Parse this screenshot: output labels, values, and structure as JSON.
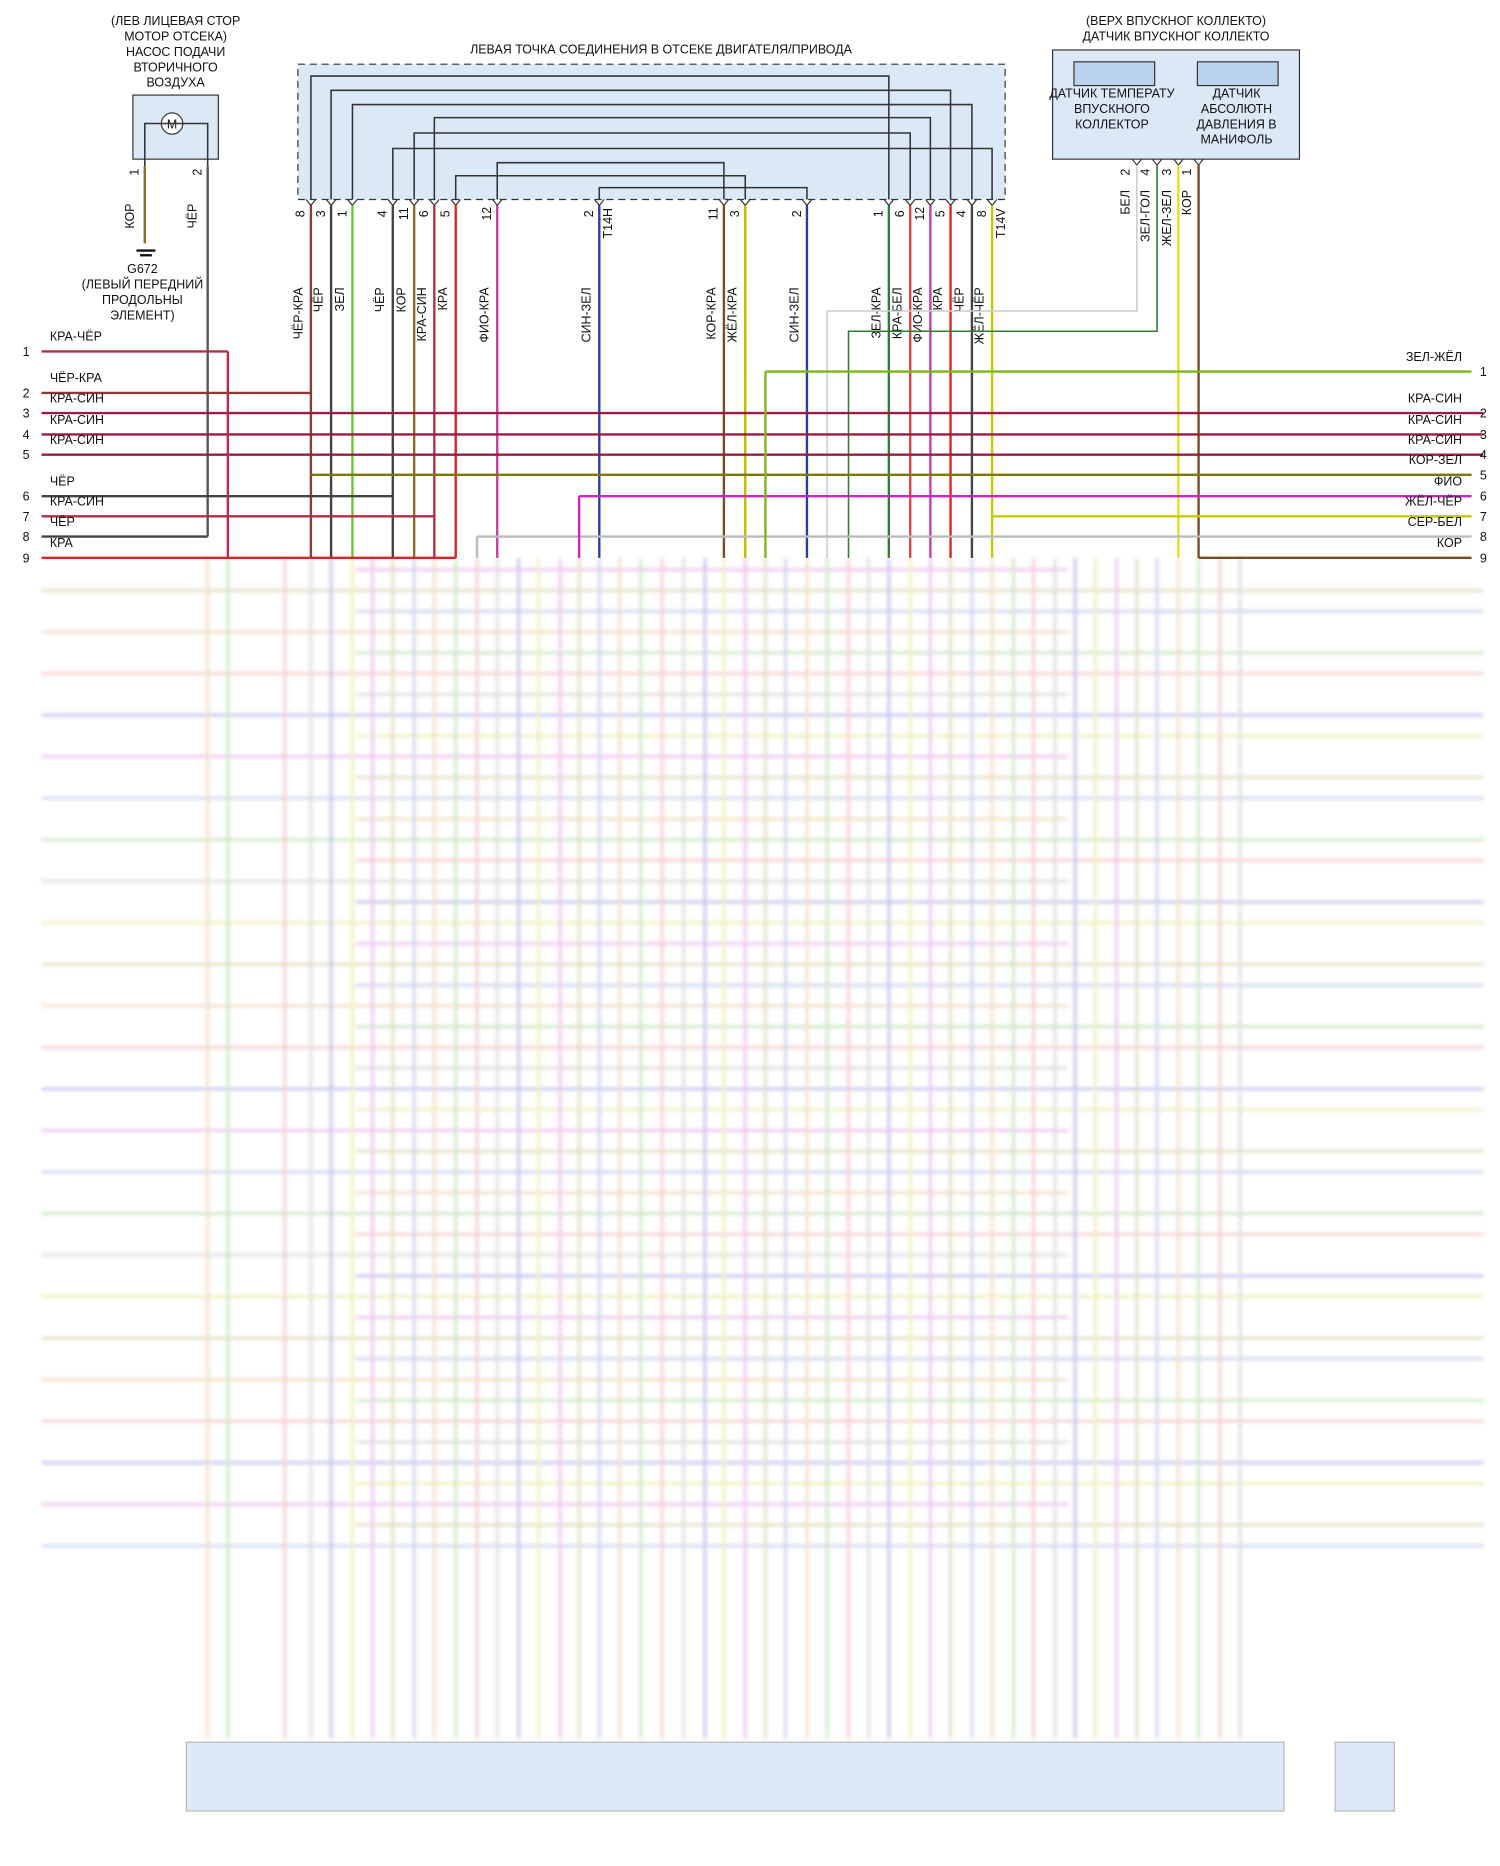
{
  "components": {
    "motor": {
      "lines": [
        "(ЛЕВ ЛИЦЕВАЯ СТОР",
        "МОТОР ОТСЕКА)",
        "НАСОС ПОДАЧИ",
        "ВТОРИЧНОГО",
        "ВОЗДУХА"
      ],
      "symbol": "M",
      "pins": [
        {
          "pin": "1",
          "wire": "КОР"
        },
        {
          "pin": "2",
          "wire": "ЧЁР"
        }
      ]
    },
    "ground": {
      "lines": [
        "G672",
        "(ЛЕВЫЙ ПЕРЕДНИЙ",
        "ПРОДОЛЬНЫ",
        "ЭЛЕМЕНТ)"
      ]
    },
    "junction": {
      "title": "ЛЕВАЯ ТОЧКА СОЕДИНЕНИЯ В ОТСЕКЕ ДВИГАТЕЛЯ/ПРИВОДА",
      "connectors": [
        "T14H",
        "T14V"
      ],
      "pins": [
        {
          "pin": "8",
          "wire": "ЧЁР-КРА"
        },
        {
          "pin": "3",
          "wire": "ЧЁР"
        },
        {
          "pin": "1",
          "wire": "ЗЕЛ"
        },
        {
          "pin": "4",
          "wire": "ЧЁР"
        },
        {
          "pin": "11",
          "wire": "КОР"
        },
        {
          "pin": "6",
          "wire": "КРА-СИН"
        },
        {
          "pin": "5",
          "wire": "КРА"
        },
        {
          "pin": "12",
          "wire": "ФИО-КРА"
        },
        {
          "pin": "2",
          "wire": "СИН-ЗЕЛ"
        },
        {
          "pin": "11",
          "wire": "КОР-КРА"
        },
        {
          "pin": "3",
          "wire": "ЖЁЛ-КРА"
        },
        {
          "pin": "2",
          "wire": "СИН-ЗЕЛ"
        },
        {
          "pin": "1",
          "wire": "ЗЕЛ-КРА"
        },
        {
          "pin": "6",
          "wire": "КРА-БЕЛ"
        },
        {
          "pin": "12",
          "wire": "ФИО-КРА"
        },
        {
          "pin": "5",
          "wire": "КРА"
        },
        {
          "pin": "4",
          "wire": "ЧЁР"
        },
        {
          "pin": "8",
          "wire": "ЖЁЛ-ЧЁР"
        }
      ]
    },
    "sensor": {
      "lines": [
        "(ВЕРХ ВПУСКНОГ КОЛЛЕКТО)",
        "ДАТЧИК ВПУСКНОГ КОЛЛЕКТО"
      ],
      "sub1": [
        "ДАТЧИК ТЕМПЕРАТУ",
        "ВПУСКНОГО",
        "КОЛЛЕКТОР"
      ],
      "sub2": [
        "ДАТЧИК",
        "АБСОЛЮТН",
        "ДАВЛЕНИЯ В",
        "МАНИФОЛЬ"
      ],
      "pins": [
        {
          "pin": "2",
          "wire": "БЕЛ"
        },
        {
          "pin": "4",
          "wire": "ЗЕЛ-ГОЛ"
        },
        {
          "pin": "3",
          "wire": "ЖЕЛ-ЗЕЛ"
        },
        {
          "pin": "1",
          "wire": "КОР"
        }
      ]
    }
  },
  "left_wires": [
    {
      "num": "1",
      "label": "КРА-ЧЁР",
      "color": "#b0304a"
    },
    {
      "num": "2",
      "label": "ЧЁР-КРА",
      "color": "#8b3a3a"
    },
    {
      "num": "3",
      "label": "КРА-СИН",
      "color": "#9b1b45"
    },
    {
      "num": "4",
      "label": "КРА-СИН",
      "color": "#9b1b45"
    },
    {
      "num": "5",
      "label": "КРА-СИН",
      "color": "#9b1b45"
    },
    {
      "num": "6",
      "label": "ЧЁР",
      "color": "#444444"
    },
    {
      "num": "7",
      "label": "КРА-СИН",
      "color": "#b0304a"
    },
    {
      "num": "8",
      "label": "ЧЁР",
      "color": "#444444"
    },
    {
      "num": "9",
      "label": "КРА",
      "color": "#dd2222"
    }
  ],
  "right_wires": [
    {
      "num": "1",
      "label": "ЗЕЛ-ЖЁЛ",
      "color": "#7cb518"
    },
    {
      "num": "2",
      "label": "КРА-СИН",
      "color": "#9b1b45"
    },
    {
      "num": "3",
      "label": "КРА-СИН",
      "color": "#9b1b45"
    },
    {
      "num": "4",
      "label": "КРА-СИН",
      "color": "#9b1b45"
    },
    {
      "num": "5",
      "label": "КОР-ЗЕЛ",
      "color": "#7a7a00"
    },
    {
      "num": "6",
      "label": "ФИО",
      "color": "#d020c0"
    },
    {
      "num": "7",
      "label": "ЖЁЛ-ЧЁР",
      "color": "#c8c800"
    },
    {
      "num": "8",
      "label": "СЕР-БЕЛ",
      "color": "#bbbbbb"
    },
    {
      "num": "9",
      "label": "КОР",
      "color": "#7a4a20"
    }
  ]
}
